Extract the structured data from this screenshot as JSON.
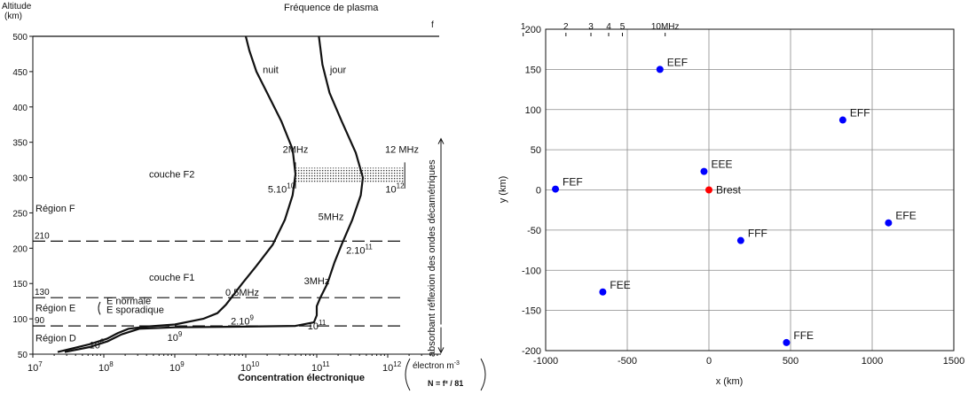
{
  "chart_data": [
    {
      "type": "line",
      "y_title": "Altitude",
      "y_unit": "(km)",
      "x_title": "Concentration électronique",
      "x_unit_box": {
        "line1": "électron m",
        "exp": "-3",
        "formula": "N = f² / 81"
      },
      "top_axis_title": "Fréquence de plasma",
      "top_axis_last": "f",
      "top_ticks": [
        {
          "label": "1",
          "mhz": 1
        },
        {
          "label": "2",
          "mhz": 2
        },
        {
          "label": "3",
          "mhz": 3
        },
        {
          "label": "4",
          "mhz": 4
        },
        {
          "label": "5",
          "mhz": 5
        },
        {
          "label": "10MHz",
          "mhz": 10
        }
      ],
      "x_scale": "log",
      "xlim_log10": [
        7,
        13
      ],
      "x_ticks": [
        {
          "base": "10",
          "exp": "7",
          "log": 7
        },
        {
          "base": "10",
          "exp": "8",
          "log": 8
        },
        {
          "base": "10",
          "exp": "9",
          "log": 9
        },
        {
          "base": "10",
          "exp": "10",
          "log": 10
        },
        {
          "base": "10",
          "exp": "11",
          "log": 11
        },
        {
          "base": "10",
          "exp": "12",
          "log": 12
        }
      ],
      "ylim": [
        50,
        500
      ],
      "y_ticks": [
        50,
        100,
        150,
        200,
        250,
        300,
        350,
        400,
        450,
        500
      ],
      "series": [
        {
          "name": "nuit",
          "points_log10_alt": [
            [
              7.35,
              53
            ],
            [
              7.8,
              64
            ],
            [
              8.05,
              72
            ],
            [
              8.2,
              80
            ],
            [
              8.35,
              86
            ],
            [
              8.6,
              89
            ],
            [
              9.0,
              92
            ],
            [
              9.4,
              100
            ],
            [
              9.6,
              108
            ],
            [
              9.72,
              120
            ],
            [
              9.82,
              133
            ],
            [
              9.95,
              150
            ],
            [
              10.15,
              175
            ],
            [
              10.38,
              205
            ],
            [
              10.55,
              240
            ],
            [
              10.66,
              275
            ],
            [
              10.7,
              305
            ],
            [
              10.66,
              340
            ],
            [
              10.5,
              380
            ],
            [
              10.3,
              420
            ],
            [
              10.15,
              450
            ],
            [
              10.05,
              480
            ],
            [
              10.0,
              500
            ]
          ]
        },
        {
          "name": "jour",
          "points_log10_alt": [
            [
              7.45,
              53
            ],
            [
              7.8,
              60
            ],
            [
              8.05,
              68
            ],
            [
              8.25,
              78
            ],
            [
              8.5,
              86
            ],
            [
              9.0,
              88
            ],
            [
              10.0,
              89
            ],
            [
              10.7,
              90
            ],
            [
              10.96,
              95
            ],
            [
              11.0,
              105
            ],
            [
              11.0,
              118
            ],
            [
              11.05,
              130
            ],
            [
              11.15,
              150
            ],
            [
              11.25,
              180
            ],
            [
              11.35,
              205
            ],
            [
              11.5,
              240
            ],
            [
              11.62,
              275
            ],
            [
              11.65,
              300
            ],
            [
              11.55,
              335
            ],
            [
              11.35,
              380
            ],
            [
              11.18,
              420
            ],
            [
              11.08,
              460
            ],
            [
              11.03,
              500
            ]
          ]
        }
      ],
      "region_lines": [
        {
          "label": "210",
          "alt": 210
        },
        {
          "label": "130",
          "alt": 130
        },
        {
          "label": "90",
          "alt": 90
        }
      ],
      "region_labels": [
        {
          "text": "couche F2",
          "alt": 300,
          "log": 8.6
        },
        {
          "text": "Région F",
          "alt": 252,
          "log": 7.0
        },
        {
          "text": "couche F1",
          "alt": 154,
          "log": 8.6
        },
        {
          "text": "Région E",
          "alt": 111,
          "log": 7.0
        },
        {
          "text": "E normale",
          "alt": 121,
          "log": 8.0
        },
        {
          "text": "E sporadique",
          "alt": 108,
          "log": 8.0
        },
        {
          "text": "Région D",
          "alt": 68,
          "log": 7.0
        }
      ],
      "annotations": [
        {
          "text": "nuit",
          "log": 10.35,
          "alt": 448
        },
        {
          "text": "jour",
          "log": 11.3,
          "alt": 448
        },
        {
          "text": "2MHz",
          "log": 10.7,
          "alt": 335
        },
        {
          "text": "12 MHz",
          "log": 12.2,
          "alt": 335
        },
        {
          "text": "5.10",
          "sup": "10",
          "log": 10.5,
          "alt": 279
        },
        {
          "text": "10",
          "sup": "12",
          "log": 12.1,
          "alt": 279
        },
        {
          "text": "5MHz",
          "log": 11.2,
          "alt": 240
        },
        {
          "text": "2.10",
          "sup": "11",
          "log": 11.6,
          "alt": 192
        },
        {
          "text": "3MHz",
          "log": 11.0,
          "alt": 149
        },
        {
          "text": "0,5MHz",
          "log": 9.95,
          "alt": 133
        },
        {
          "text": "2.10",
          "sup": "9",
          "log": 9.95,
          "alt": 92
        },
        {
          "text": "10",
          "sup": "11",
          "log": 11.0,
          "alt": 85
        },
        {
          "text": "10",
          "sup": "8",
          "log": 7.9,
          "alt": 58
        },
        {
          "text": "10",
          "sup": "9",
          "log": 9.0,
          "alt": 69
        }
      ],
      "f2_band": {
        "alt_min": 292,
        "alt_max": 314,
        "log_min": 10.7,
        "log_max": 12.24
      },
      "side_label": "absorbant réflexion des ondes décamétriques"
    },
    {
      "type": "scatter",
      "xlabel": "x (km)",
      "ylabel": "y (km)",
      "xlim": [
        -1000,
        1500
      ],
      "ylim": [
        -200,
        200
      ],
      "x_ticks": [
        -1000,
        -500,
        0,
        500,
        1000,
        1500
      ],
      "y_ticks": [
        -200,
        -150,
        -100,
        -50,
        0,
        50,
        100,
        150,
        200
      ],
      "grid": true,
      "points": [
        {
          "label": "EEF",
          "x": -300,
          "y": 150,
          "color": "#0000ff"
        },
        {
          "label": "EFF",
          "x": 820,
          "y": 87,
          "color": "#0000ff"
        },
        {
          "label": "EEE",
          "x": -30,
          "y": 23,
          "color": "#0000ff"
        },
        {
          "label": "FEF",
          "x": -940,
          "y": 1,
          "color": "#0000ff"
        },
        {
          "label": "Brest",
          "x": 0,
          "y": 0,
          "color": "#ff0000"
        },
        {
          "label": "EFE",
          "x": 1100,
          "y": -41,
          "color": "#0000ff"
        },
        {
          "label": "FFF",
          "x": 195,
          "y": -63,
          "color": "#0000ff"
        },
        {
          "label": "FEE",
          "x": -650,
          "y": -127,
          "color": "#0000ff"
        },
        {
          "label": "FFE",
          "x": 475,
          "y": -190,
          "color": "#0000ff"
        }
      ]
    }
  ]
}
